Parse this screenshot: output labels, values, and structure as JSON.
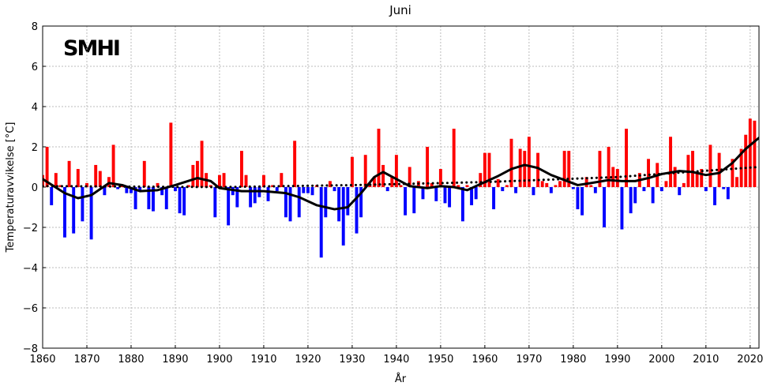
{
  "chart_data": {
    "type": "bar",
    "title": "Juni",
    "logo": "SMHI",
    "x_label": "År",
    "y_label": "Temperaturavvikelse [°C]",
    "xlim": [
      1860,
      2022
    ],
    "ylim": [
      -8,
      8
    ],
    "xticks": [
      1860,
      1870,
      1880,
      1890,
      1900,
      1910,
      1920,
      1930,
      1940,
      1950,
      1960,
      1970,
      1980,
      1990,
      2000,
      2010,
      2020
    ],
    "yticks": [
      {
        "value": -8,
        "label": "−8"
      },
      {
        "value": -6,
        "label": "−6"
      },
      {
        "value": -4,
        "label": "−4"
      },
      {
        "value": -2,
        "label": "−2"
      },
      0,
      2,
      4,
      6,
      8
    ],
    "grid": true,
    "positive_color": "#ff0000",
    "negative_color": "#0000ff",
    "x_start": 1860,
    "values": [
      0.6,
      2.0,
      -0.9,
      0.7,
      0.1,
      -2.5,
      1.3,
      -2.3,
      0.9,
      -1.7,
      0.2,
      -2.6,
      1.1,
      0.8,
      -0.4,
      0.5,
      2.1,
      -0.1,
      0.1,
      -0.3,
      -0.3,
      -1.1,
      -0.2,
      1.3,
      -1.1,
      -1.2,
      0.2,
      -0.4,
      -1.1,
      3.2,
      -0.2,
      -1.3,
      -1.4,
      0.1,
      1.1,
      1.3,
      2.3,
      0.7,
      0.1,
      -1.5,
      0.6,
      0.7,
      -1.9,
      -0.4,
      -1.0,
      1.8,
      0.6,
      -1.0,
      -0.8,
      -0.5,
      0.6,
      -0.7,
      0.1,
      -0.2,
      0.7,
      -1.5,
      -1.7,
      2.3,
      -1.5,
      -0.3,
      -0.3,
      -0.4,
      0.1,
      -3.5,
      -1.5,
      0.3,
      -0.2,
      -1.7,
      -2.9,
      -1.4,
      1.5,
      -2.3,
      -1.5,
      1.6,
      0.1,
      0.5,
      2.9,
      1.1,
      -0.2,
      0.5,
      1.6,
      0.1,
      -1.4,
      1.0,
      -1.3,
      0.3,
      -0.6,
      2.0,
      0.2,
      -0.7,
      0.9,
      -0.8,
      -1.0,
      2.9,
      0.1,
      -1.7,
      0.1,
      -0.9,
      -0.6,
      0.7,
      1.7,
      1.7,
      -1.1,
      0.4,
      -0.2,
      0.1,
      2.4,
      -0.3,
      1.9,
      1.8,
      2.5,
      -0.4,
      1.7,
      0.3,
      0.2,
      -0.3,
      0.1,
      0.3,
      1.8,
      1.8,
      -0.1,
      -1.1,
      -1.4,
      0.5,
      0.1,
      -0.3,
      1.8,
      -2.0,
      2.0,
      1.0,
      0.9,
      -2.1,
      2.9,
      -1.3,
      -0.8,
      0.7,
      -0.2,
      1.4,
      -0.8,
      1.2,
      -0.2,
      0.3,
      2.5,
      1.0,
      -0.4,
      0.2,
      1.6,
      1.8,
      0.7,
      0.9,
      -0.2,
      2.1,
      -0.9,
      1.7,
      -0.1,
      -0.6,
      1.4,
      0.5,
      1.9,
      2.6,
      3.4,
      3.3
    ],
    "lines": [
      {
        "style": "solid",
        "color": "#000000",
        "x": [
          1860,
          1865,
          1868,
          1871,
          1875,
          1878,
          1882,
          1886,
          1890,
          1895,
          1898,
          1900,
          1905,
          1910,
          1915,
          1918,
          1922,
          1926,
          1929,
          1932,
          1935,
          1937,
          1940,
          1943,
          1947,
          1950,
          1953,
          1956,
          1960,
          1963,
          1966,
          1969,
          1972,
          1975,
          1978,
          1981,
          1984,
          1988,
          1991,
          1994,
          1997,
          2000,
          2004,
          2007,
          2010,
          2013,
          2016,
          2019,
          2022
        ],
        "values": [
          0.4,
          -0.3,
          -0.55,
          -0.4,
          0.2,
          0.1,
          -0.2,
          -0.15,
          0.1,
          0.45,
          0.3,
          -0.05,
          -0.2,
          -0.2,
          -0.3,
          -0.5,
          -0.9,
          -1.1,
          -1.0,
          -0.3,
          0.5,
          0.75,
          0.4,
          0.05,
          -0.05,
          0.05,
          0.0,
          -0.15,
          0.25,
          0.55,
          0.9,
          1.1,
          0.95,
          0.6,
          0.35,
          0.1,
          0.2,
          0.35,
          0.3,
          0.3,
          0.45,
          0.65,
          0.8,
          0.75,
          0.6,
          0.7,
          1.2,
          1.9,
          2.45
        ]
      },
      {
        "style": "dotted",
        "color": "#000000",
        "x": [
          1860,
          1900,
          1930,
          1960,
          1990,
          2022
        ],
        "values": [
          0.05,
          0.0,
          0.1,
          0.25,
          0.5,
          1.0
        ]
      }
    ]
  }
}
